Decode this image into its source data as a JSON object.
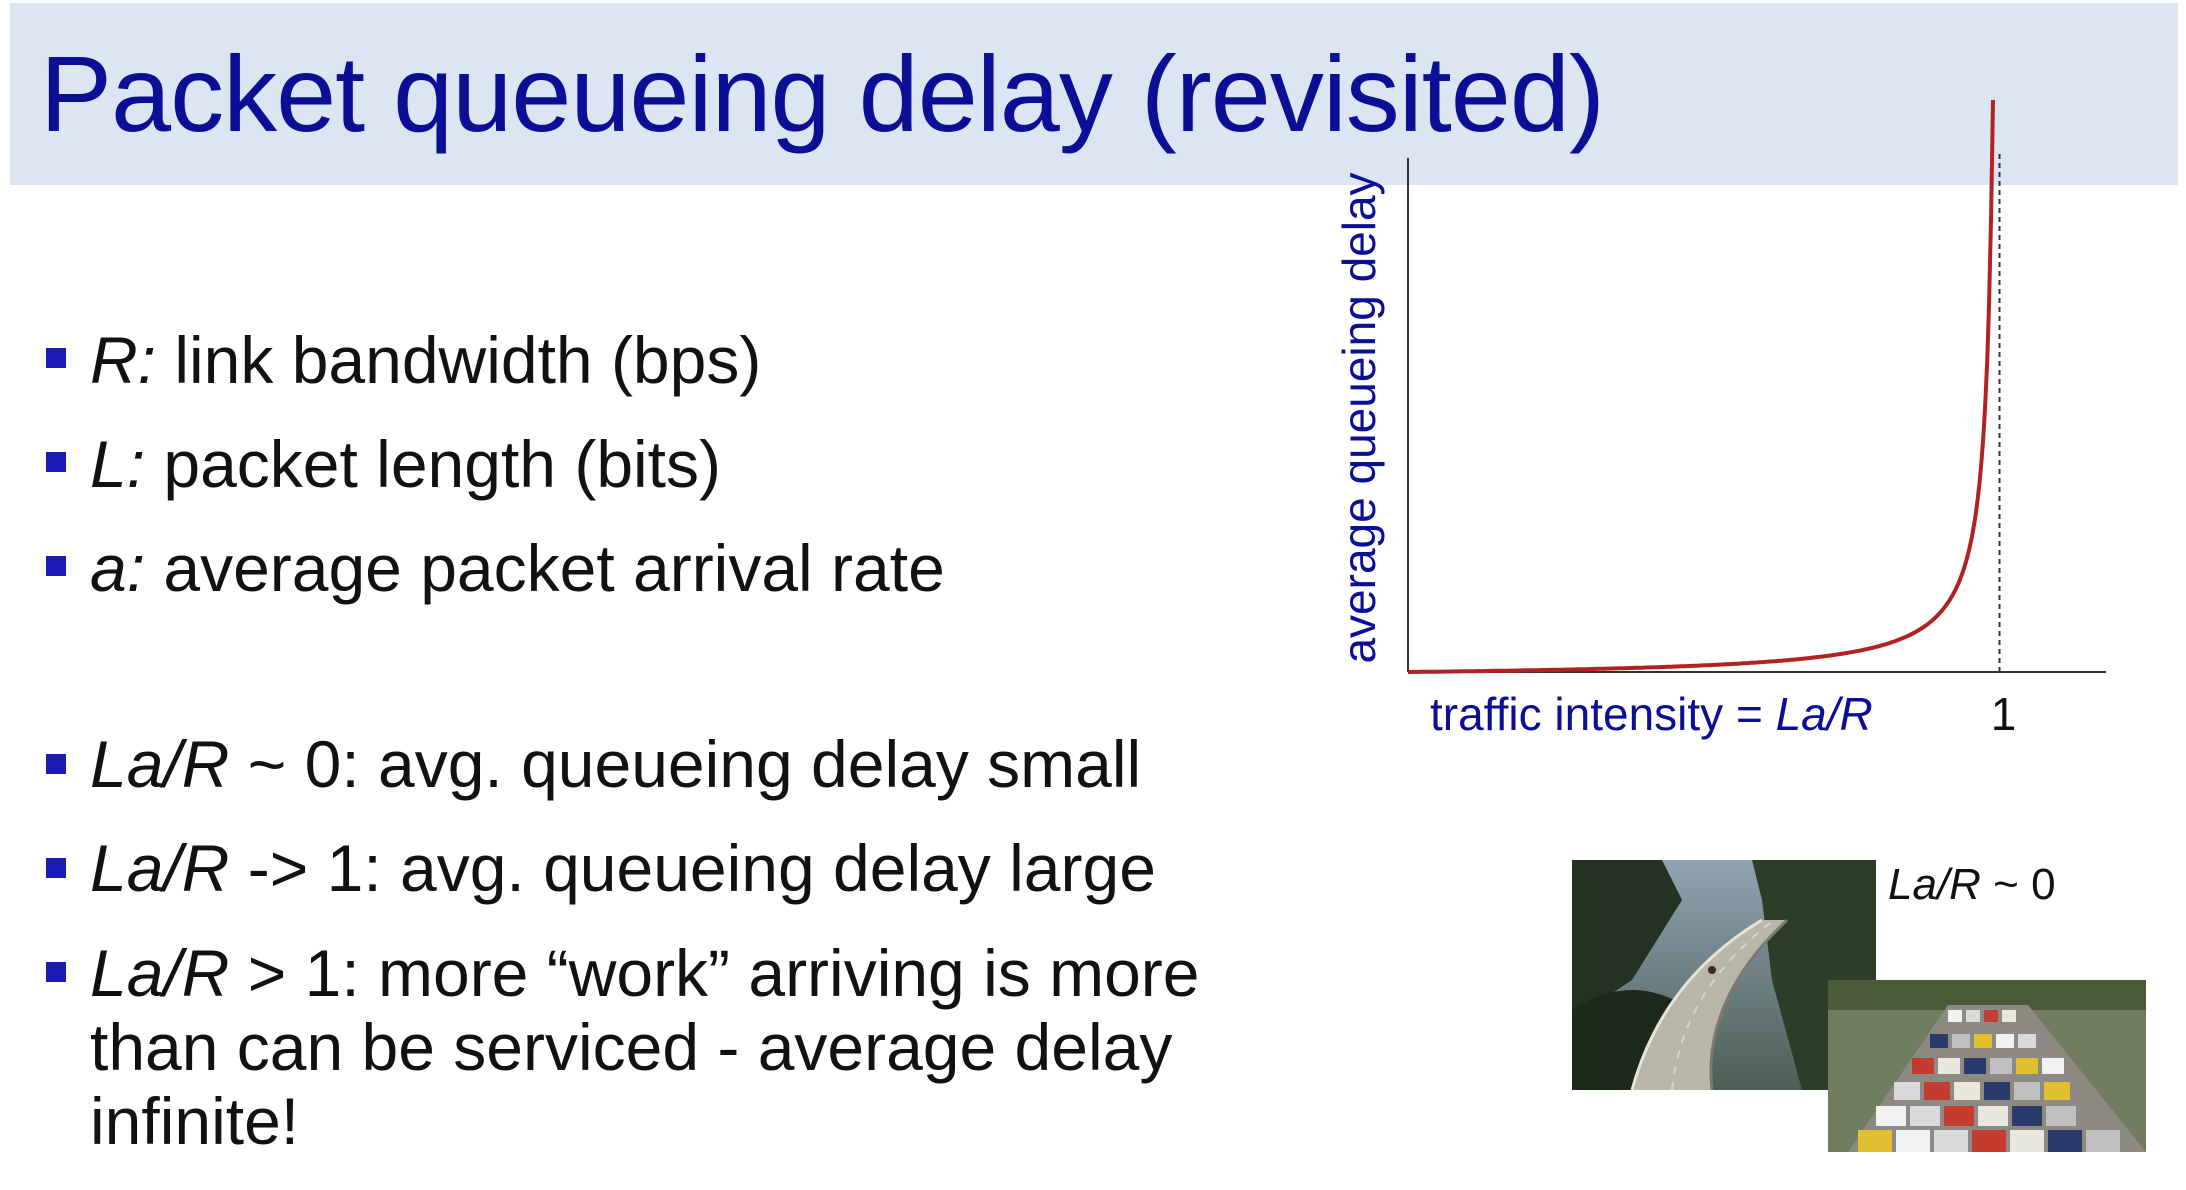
{
  "slide": {
    "title": "Packet queueing delay (revisited)"
  },
  "definitions": [
    {
      "symbol": "R:",
      "text": " link bandwidth (bps)"
    },
    {
      "symbol": "L:",
      "text": " packet length (bits)"
    },
    {
      "symbol": "a:",
      "text": " average packet arrival rate"
    }
  ],
  "cases": [
    {
      "symbol": "La/R",
      "text": " ~ 0: avg. queueing delay small"
    },
    {
      "symbol": "La/R",
      "text": " -> 1: avg. queueing delay large"
    },
    {
      "symbol": "La/R",
      "text": " > 1: more “work” arriving  is more than can be serviced -  average delay infinite!"
    }
  ],
  "chart_data": {
    "type": "line",
    "ylabel": "average  queueing delay",
    "xlabel_prefix": "traffic intensity = ",
    "xlabel_var": "La/R",
    "x_tick_label": "1",
    "x_marker": 1,
    "xlim": [
      0,
      1.18
    ],
    "curve": "1/(1-x)",
    "curve_color": "#b22222",
    "axis_color": "#333333",
    "label_color": "#0a0f96"
  },
  "photos": {
    "caption_var": "La/R",
    "caption_text": " ~ 0"
  }
}
